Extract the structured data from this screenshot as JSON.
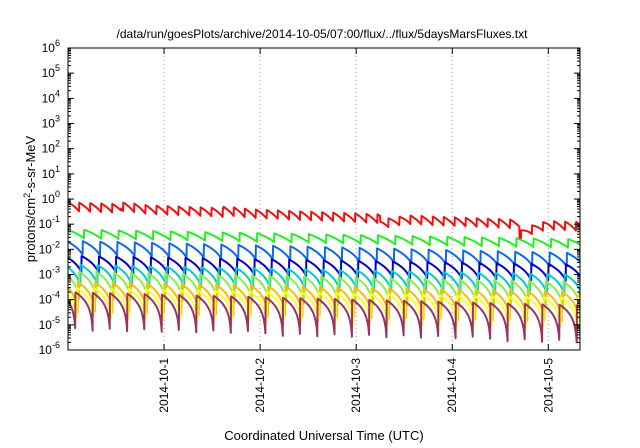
{
  "chart_data": {
    "type": "line",
    "title": "/data/run/goesPlots/archive/2014-10-05/07:00/flux/../flux/5daysMarsFluxes.txt",
    "xlabel": "Coordinated Universal Time (UTC)",
    "ylabel_main": "protons/cm",
    "ylabel_sup": "2",
    "ylabel_tail": "-s-sr-MeV",
    "x_ticks": [
      "2014-10-1",
      "2014-10-2",
      "2014-10-3",
      "2014-10-4",
      "2014-10-5"
    ],
    "x_range_days": [
      0.0,
      5.33
    ],
    "x_tick_days": [
      1,
      2,
      3,
      4,
      5
    ],
    "ylog": true,
    "ylim": [
      1e-06,
      1000000.0
    ],
    "y_tick_exponents": [
      -6,
      -5,
      -4,
      -3,
      -2,
      -1,
      0,
      1,
      2,
      3,
      4,
      5,
      6
    ],
    "grid": true,
    "legend": "none",
    "series": [
      {
        "color": "#ee1111",
        "start": 0.75,
        "end": 0.12,
        "period_days": 0.115,
        "depth": 0.45,
        "jumps": [
          [
            0.55,
            1.2
          ],
          [
            1.62,
            1.2
          ],
          [
            3.25,
            0.6
          ],
          [
            4.7,
            0.35
          ]
        ]
      },
      {
        "color": "#22ee22",
        "start": 0.062,
        "end": 0.025,
        "period_days": 0.18,
        "depth": 0.45,
        "jumps": []
      },
      {
        "color": "#1166ee",
        "start": 0.022,
        "end": 0.007,
        "period_days": 0.18,
        "depth": 0.28,
        "jumps": []
      },
      {
        "color": "#0000cc",
        "start": 0.0055,
        "end": 0.0025,
        "period_days": 0.18,
        "depth": 0.22,
        "jumps": []
      },
      {
        "color": "#00cccc",
        "start": 0.0025,
        "end": 0.001,
        "period_days": 0.18,
        "depth": 0.15,
        "jumps": []
      },
      {
        "color": "#88ee44",
        "start": 0.0013,
        "end": 0.0005,
        "period_days": 0.18,
        "depth": 0.08,
        "jumps": []
      },
      {
        "color": "#ffbb00",
        "start": 0.0005,
        "end": 0.0002,
        "period_days": 0.18,
        "depth": 0.06,
        "jumps": []
      },
      {
        "color": "#ffff22",
        "start": 0.0003,
        "end": 0.00012,
        "period_days": 0.18,
        "depth": 0.06,
        "jumps": []
      },
      {
        "color": "#993366",
        "start": 0.0002,
        "end": 6e-05,
        "period_days": 0.18,
        "depth": 0.03,
        "jumps": []
      }
    ]
  }
}
